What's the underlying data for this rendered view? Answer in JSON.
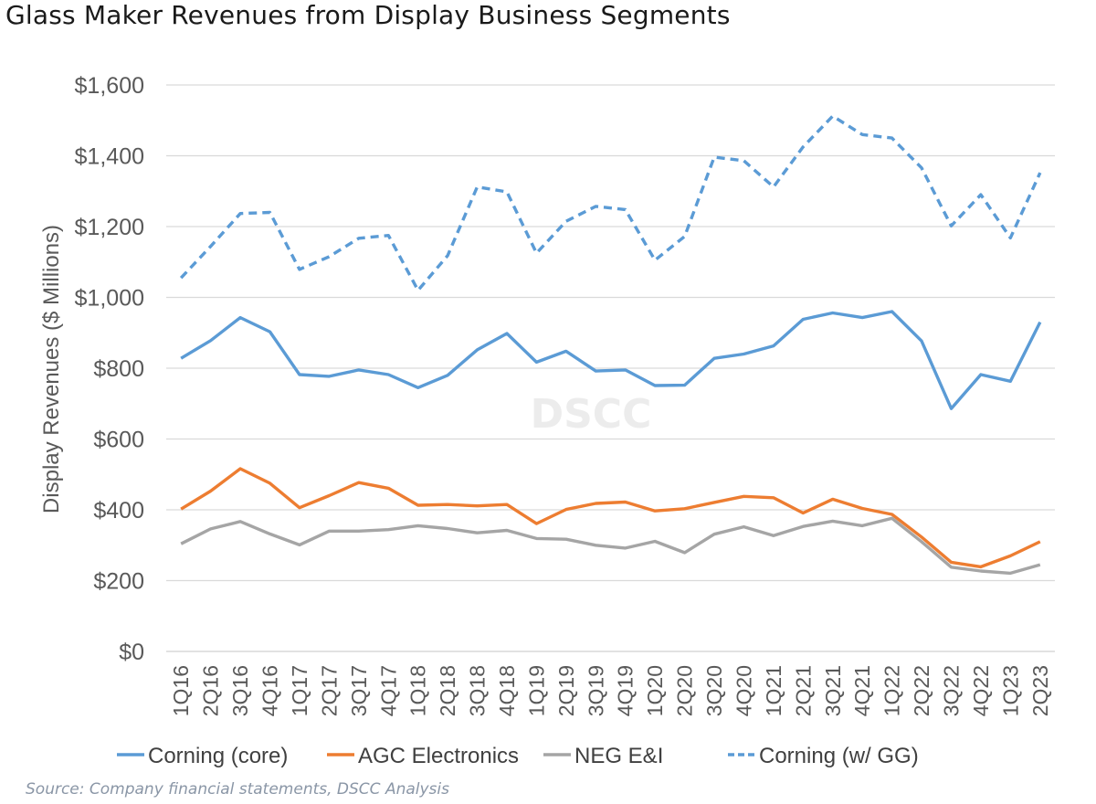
{
  "header": {
    "title": "Glass Maker Revenues from Display Business Segments"
  },
  "footer": {
    "source": "Source: Company financial statements, DSCC Analysis"
  },
  "watermark": "DSCC",
  "chart_data": {
    "type": "line",
    "title": "Glass Maker Revenues from Display Business Segments",
    "xlabel": "",
    "ylabel": "Display Revenues  ($ Millions)",
    "ylim": [
      0,
      1600
    ],
    "ytick_step": 200,
    "ytick_labels": [
      "$0",
      "$200",
      "$400",
      "$600",
      "$800",
      "$1,000",
      "$1,200",
      "$1,400",
      "$1,600"
    ],
    "grid": true,
    "legend_position": "bottom",
    "categories": [
      "1Q16",
      "2Q16",
      "3Q16",
      "4Q16",
      "1Q17",
      "2Q17",
      "3Q17",
      "4Q17",
      "1Q18",
      "2Q18",
      "3Q18",
      "4Q18",
      "1Q19",
      "2Q19",
      "3Q19",
      "4Q19",
      "1Q20",
      "2Q20",
      "3Q20",
      "4Q20",
      "1Q21",
      "2Q21",
      "3Q21",
      "4Q21",
      "1Q22",
      "2Q22",
      "3Q22",
      "4Q22",
      "1Q23",
      "2Q23"
    ],
    "series": [
      {
        "name": "Corning (core)",
        "color": "#5b9bd5",
        "dash": "solid",
        "values": [
          828,
          878,
          943,
          903,
          782,
          777,
          795,
          782,
          745,
          780,
          852,
          898,
          817,
          848,
          792,
          795,
          751,
          752,
          828,
          840,
          863,
          938,
          956,
          943,
          960,
          877,
          686,
          782,
          763,
          930
        ]
      },
      {
        "name": "AGC Electronics",
        "color": "#ed7d31",
        "dash": "solid",
        "values": [
          402,
          453,
          516,
          475,
          406,
          440,
          477,
          461,
          413,
          415,
          411,
          415,
          361,
          401,
          418,
          422,
          397,
          403,
          421,
          438,
          434,
          391,
          430,
          404,
          387,
          323,
          252,
          239,
          270,
          310
        ]
      },
      {
        "name": "NEG E&I",
        "color": "#a5a5a5",
        "dash": "solid",
        "values": [
          304,
          346,
          367,
          332,
          301,
          340,
          340,
          344,
          355,
          347,
          335,
          342,
          319,
          317,
          300,
          292,
          311,
          279,
          331,
          352,
          327,
          353,
          368,
          355,
          376,
          310,
          238,
          227,
          221,
          245
        ]
      },
      {
        "name": "Corning (w/ GG)",
        "color": "#5b9bd5",
        "dash": "dashed",
        "values": [
          1055,
          1144,
          1237,
          1240,
          1079,
          1115,
          1167,
          1175,
          1020,
          1118,
          1312,
          1298,
          1125,
          1215,
          1257,
          1248,
          1105,
          1172,
          1396,
          1386,
          1312,
          1425,
          1512,
          1460,
          1450,
          1366,
          1202,
          1290,
          1168,
          1352
        ]
      }
    ]
  }
}
